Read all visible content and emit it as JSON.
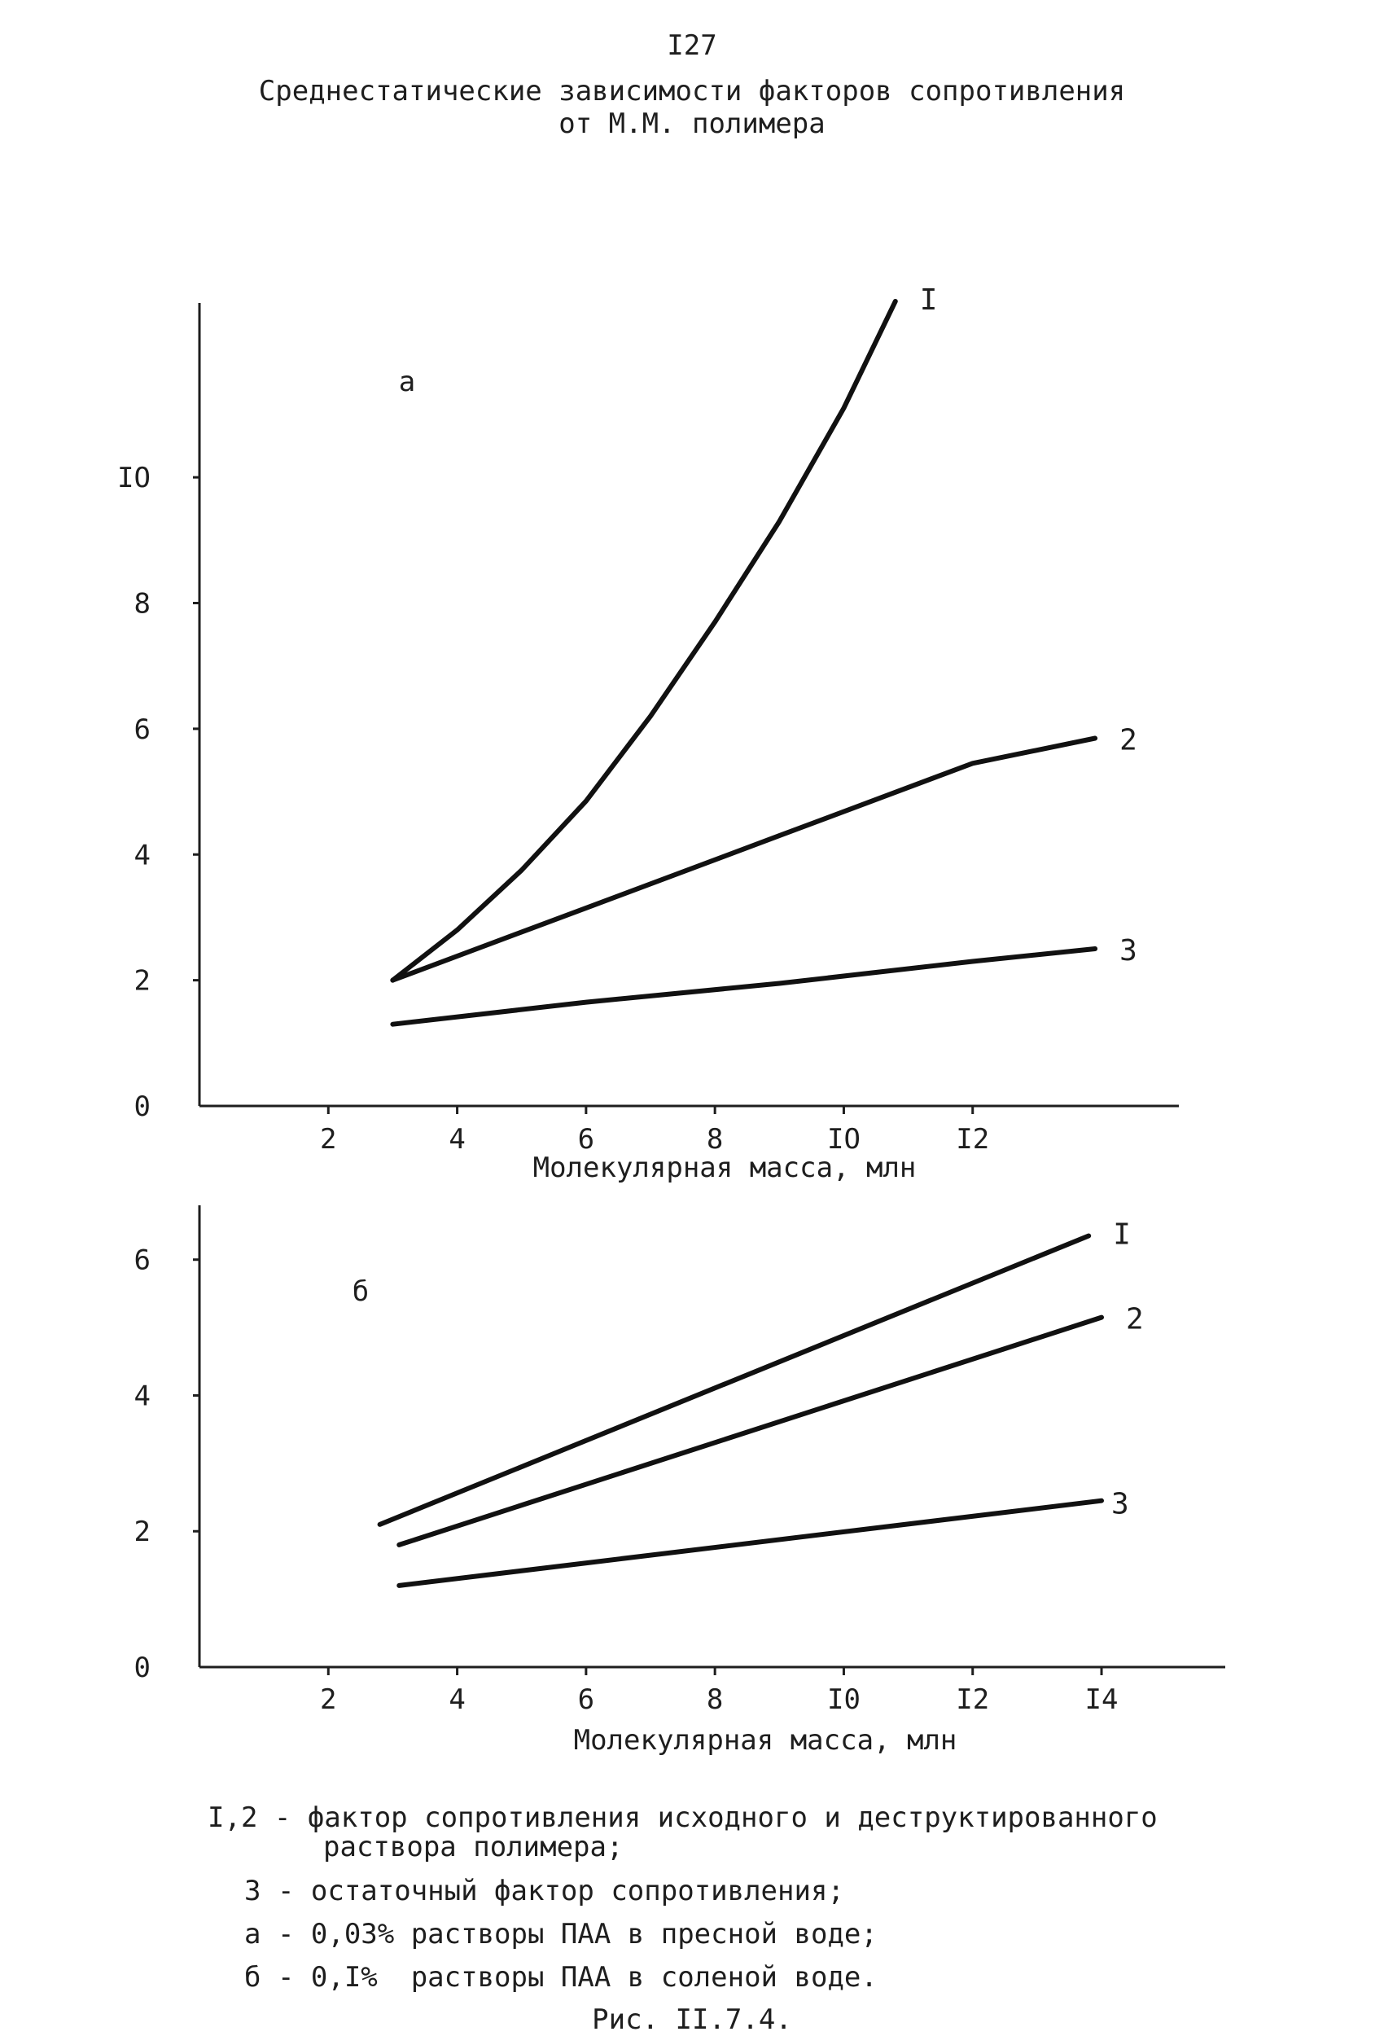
{
  "page": {
    "number": "I27",
    "title_line1": "Среднестатические зависимости факторов сопротивления",
    "title_line2": "от М.М. полимера"
  },
  "chart_data": [
    {
      "type": "line",
      "panel_label": "а",
      "xlabel": "Молекулярная масса, млн",
      "ylabel": "",
      "xlim": [
        0,
        15.2
      ],
      "ylim": [
        0,
        12.8
      ],
      "xticks": [
        2,
        4,
        6,
        8,
        10,
        12
      ],
      "xtick_labels": [
        "2",
        "4",
        "6",
        "8",
        "IO",
        "I2"
      ],
      "yticks": [
        0,
        2,
        4,
        6,
        8,
        10
      ],
      "ytick_labels": [
        "0",
        "2",
        "4",
        "6",
        "8",
        "IO"
      ],
      "series": [
        {
          "name": "I",
          "x": [
            3.0,
            4.0,
            5.0,
            6.0,
            7.0,
            8.0,
            9.0,
            10.0,
            10.8
          ],
          "y": [
            2.0,
            2.8,
            3.75,
            4.85,
            6.2,
            7.7,
            9.3,
            11.1,
            12.8
          ]
        },
        {
          "name": "2",
          "x": [
            3.0,
            6.0,
            9.0,
            12.0,
            13.9
          ],
          "y": [
            2.0,
            3.15,
            4.3,
            5.45,
            5.85
          ]
        },
        {
          "name": "3",
          "x": [
            3.0,
            6.0,
            9.0,
            12.0,
            13.9
          ],
          "y": [
            1.3,
            1.65,
            1.95,
            2.3,
            2.5
          ]
        }
      ],
      "grid": false,
      "legend": "labels at line ends"
    },
    {
      "type": "line",
      "panel_label": "б",
      "xlabel": "Молекулярная масса, млн",
      "ylabel": "",
      "xlim": [
        0,
        15.2
      ],
      "ylim": [
        0,
        6.8
      ],
      "xticks": [
        2,
        4,
        6,
        8,
        10,
        12,
        14
      ],
      "xtick_labels": [
        "2",
        "4",
        "6",
        "8",
        "I0",
        "I2",
        "I4"
      ],
      "yticks": [
        0,
        2,
        4,
        6
      ],
      "ytick_labels": [
        "0",
        "2",
        "4",
        "6"
      ],
      "series": [
        {
          "name": "I",
          "x": [
            2.8,
            13.8
          ],
          "y": [
            2.1,
            6.35
          ]
        },
        {
          "name": "2",
          "x": [
            3.1,
            14.0
          ],
          "y": [
            1.8,
            5.15
          ]
        },
        {
          "name": "3",
          "x": [
            3.1,
            14.0
          ],
          "y": [
            1.2,
            2.45
          ]
        }
      ],
      "grid": false,
      "legend": "labels at line ends"
    }
  ],
  "legend_notes": {
    "line1": "I,2 - фактор сопротивления исходного и деструктированного",
    "line2": "раствора полимера;",
    "line3": "3 - остаточный фактор сопротивления;",
    "line4": "а - 0,03% растворы ПАА в пресной воде;",
    "line5": "б - 0,I%  растворы ПАА в соленой воде.",
    "caption": "Рис. II.7.4."
  }
}
